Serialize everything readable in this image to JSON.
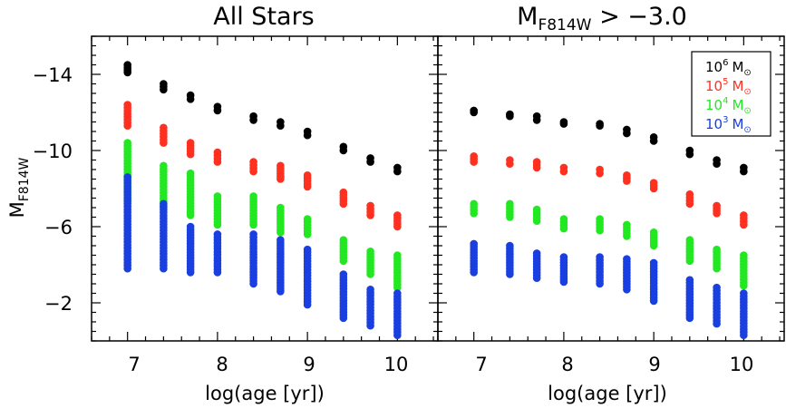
{
  "chart_data": [
    {
      "type": "scatter",
      "title": "All Stars",
      "xlabel": "log(age [yr])",
      "ylabel": "M",
      "ylabel_sub": "F814W",
      "xlim": [
        6.6,
        10.45
      ],
      "ylim": [
        -16,
        0
      ],
      "y_inverted": true,
      "xticks": [
        7,
        8,
        9,
        10
      ],
      "yticks": [
        -14,
        -10,
        -6,
        -2
      ],
      "ytick_labels": [
        "−14",
        "−10",
        "−6",
        "−2"
      ],
      "x": [
        7.0,
        7.4,
        7.7,
        8.0,
        8.4,
        8.7,
        9.0,
        9.4,
        9.7,
        10.0
      ],
      "series": [
        {
          "name": "10^6 Msun",
          "color": "#000000",
          "ranges": [
            [
              -14.1,
              -14.5
            ],
            [
              -13.2,
              -13.5
            ],
            [
              -12.7,
              -12.9
            ],
            [
              -12.1,
              -12.3
            ],
            [
              -11.6,
              -11.8
            ],
            [
              -11.3,
              -11.5
            ],
            [
              -10.8,
              -11.0
            ],
            [
              -10.0,
              -10.2
            ],
            [
              -9.4,
              -9.6
            ],
            [
              -8.9,
              -9.1
            ]
          ]
        },
        {
          "name": "10^5 Msun",
          "color": "#ff3020",
          "ranges": [
            [
              -11.3,
              -12.4
            ],
            [
              -10.4,
              -11.2
            ],
            [
              -9.8,
              -10.4
            ],
            [
              -9.4,
              -9.9
            ],
            [
              -8.9,
              -9.4
            ],
            [
              -8.5,
              -9.2
            ],
            [
              -8.1,
              -8.7
            ],
            [
              -7.2,
              -7.8
            ],
            [
              -6.6,
              -7.1
            ],
            [
              -6.0,
              -6.6
            ]
          ]
        },
        {
          "name": "10^4 Msun",
          "color": "#22e822",
          "ranges": [
            [
              -7.3,
              -10.4
            ],
            [
              -7.0,
              -9.2
            ],
            [
              -6.6,
              -8.8
            ],
            [
              -6.1,
              -7.6
            ],
            [
              -6.1,
              -7.6
            ],
            [
              -5.7,
              -7.0
            ],
            [
              -5.6,
              -6.4
            ],
            [
              -4.2,
              -5.3
            ],
            [
              -3.5,
              -4.7
            ],
            [
              -2.8,
              -4.5
            ]
          ]
        },
        {
          "name": "10^3 Msun",
          "color": "#1a3fe0",
          "ranges": [
            [
              -3.8,
              -8.6
            ],
            [
              -3.8,
              -7.2
            ],
            [
              -3.6,
              -6.0
            ],
            [
              -3.6,
              -5.6
            ],
            [
              -3.0,
              -5.6
            ],
            [
              -2.6,
              -5.3
            ],
            [
              -1.9,
              -4.8
            ],
            [
              -1.2,
              -3.5
            ],
            [
              -0.8,
              -2.7
            ],
            [
              -0.3,
              -2.5
            ]
          ]
        }
      ]
    },
    {
      "type": "scatter",
      "title": "M",
      "title_sub": "F814W",
      "title_rest": " > −3.0",
      "xlabel": "log(age [yr])",
      "xlim": [
        6.6,
        10.45
      ],
      "ylim": [
        -16,
        0
      ],
      "y_inverted": true,
      "xticks": [
        7,
        8,
        9,
        10
      ],
      "x": [
        7.0,
        7.4,
        7.7,
        8.0,
        8.4,
        8.7,
        9.0,
        9.4,
        9.7,
        10.0
      ],
      "series": [
        {
          "name": "10^6 Msun",
          "color": "#000000",
          "ranges": [
            [
              -12.0,
              -12.1
            ],
            [
              -11.8,
              -11.9
            ],
            [
              -11.6,
              -11.8
            ],
            [
              -11.4,
              -11.5
            ],
            [
              -11.3,
              -11.4
            ],
            [
              -10.9,
              -11.1
            ],
            [
              -10.5,
              -10.7
            ],
            [
              -9.8,
              -10.0
            ],
            [
              -9.3,
              -9.5
            ],
            [
              -8.9,
              -9.1
            ]
          ]
        },
        {
          "name": "10^5 Msun",
          "color": "#ff3020",
          "ranges": [
            [
              -9.4,
              -9.7
            ],
            [
              -9.3,
              -9.5
            ],
            [
              -9.1,
              -9.4
            ],
            [
              -8.9,
              -9.1
            ],
            [
              -8.8,
              -9.0
            ],
            [
              -8.4,
              -8.7
            ],
            [
              -8.0,
              -8.3
            ],
            [
              -7.2,
              -7.7
            ],
            [
              -6.7,
              -7.1
            ],
            [
              -6.1,
              -6.6
            ]
          ]
        },
        {
          "name": "10^4 Msun",
          "color": "#22e822",
          "ranges": [
            [
              -6.7,
              -7.2
            ],
            [
              -6.5,
              -7.2
            ],
            [
              -6.3,
              -6.9
            ],
            [
              -5.9,
              -6.4
            ],
            [
              -5.8,
              -6.4
            ],
            [
              -5.5,
              -6.1
            ],
            [
              -5.0,
              -5.7
            ],
            [
              -4.2,
              -5.3
            ],
            [
              -3.8,
              -4.8
            ],
            [
              -2.9,
              -4.5
            ]
          ]
        },
        {
          "name": "10^3 Msun",
          "color": "#1a3fe0",
          "ranges": [
            [
              -3.6,
              -5.1
            ],
            [
              -3.5,
              -5.0
            ],
            [
              -3.3,
              -4.6
            ],
            [
              -3.1,
              -4.4
            ],
            [
              -3.0,
              -4.4
            ],
            [
              -2.7,
              -4.3
            ],
            [
              -2.1,
              -4.1
            ],
            [
              -1.2,
              -3.2
            ],
            [
              -0.9,
              -2.8
            ],
            [
              -0.3,
              -2.5
            ]
          ]
        }
      ]
    }
  ],
  "legend": [
    {
      "exp_base": "10",
      "exp": "6",
      "unit": "M",
      "color": "#000000"
    },
    {
      "exp_base": "10",
      "exp": "5",
      "unit": "M",
      "color": "#ff3020"
    },
    {
      "exp_base": "10",
      "exp": "4",
      "unit": "M",
      "color": "#22e822"
    },
    {
      "exp_base": "10",
      "exp": "3",
      "unit": "M",
      "color": "#1a3fe0"
    }
  ]
}
